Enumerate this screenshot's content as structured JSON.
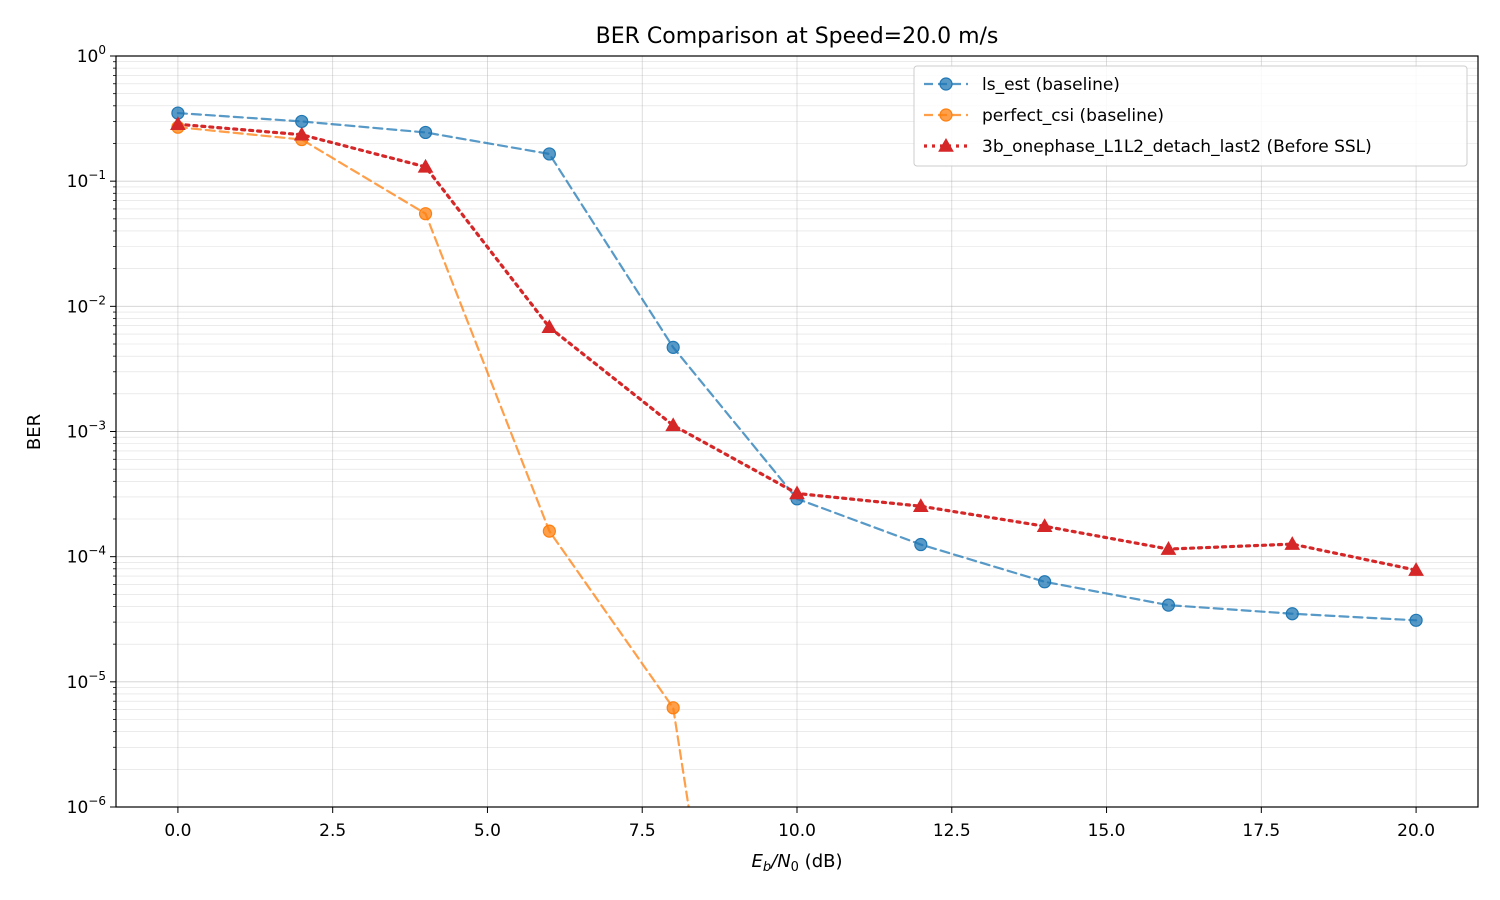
{
  "chart_data": {
    "type": "line",
    "title": "BER Comparison at Speed=20.0 m/s",
    "xlabel": "E_b/N_0 (dB)",
    "xlabel_parts": {
      "e": "E",
      "b": "b",
      "slash_n": "/N",
      "zero": "0",
      "unit": " (dB)"
    },
    "ylabel": "BER",
    "xlim": [
      -1.0,
      21.0
    ],
    "ylim": [
      1e-06,
      1
    ],
    "yscale": "log",
    "grid": true,
    "legend_location": "top-right",
    "x_ticks": [
      0.0,
      2.5,
      5.0,
      7.5,
      10.0,
      12.5,
      15.0,
      17.5,
      20.0
    ],
    "x_tick_labels": [
      "0.0",
      "2.5",
      "5.0",
      "7.5",
      "10.0",
      "12.5",
      "15.0",
      "17.5",
      "20.0"
    ],
    "y_ticks": [
      {
        "value": 1,
        "base": "10",
        "exp": "0"
      },
      {
        "value": 0.1,
        "base": "10",
        "exp": "−1"
      },
      {
        "value": 0.01,
        "base": "10",
        "exp": "−2"
      },
      {
        "value": 0.001,
        "base": "10",
        "exp": "−3"
      },
      {
        "value": 0.0001,
        "base": "10",
        "exp": "−4"
      },
      {
        "value": 1e-05,
        "base": "10",
        "exp": "−5"
      },
      {
        "value": 1e-06,
        "base": "10",
        "exp": "−6"
      }
    ],
    "series": [
      {
        "name": "ls_est (baseline)",
        "color": "#1f77b4",
        "line_style": "dashed",
        "marker": "circle",
        "x": [
          0,
          2,
          4,
          6,
          8,
          10,
          12,
          14,
          16,
          18,
          20
        ],
        "y": [
          0.35,
          0.3,
          0.245,
          0.165,
          0.0047,
          0.00029,
          0.000125,
          6.3e-05,
          4.1e-05,
          3.5e-05,
          3.1e-05
        ]
      },
      {
        "name": "perfect_csi (baseline)",
        "color": "#ff7f0e",
        "line_style": "dashed",
        "marker": "circle",
        "x": [
          0,
          2,
          4,
          6,
          8,
          8.25
        ],
        "y": [
          0.27,
          0.215,
          0.055,
          0.00016,
          6.2e-06,
          1e-06
        ],
        "marker_points": 5
      },
      {
        "name": "3b_onephase_L1L2_detach_last2 (Before SSL)",
        "color": "#d62728",
        "line_style": "dotted",
        "marker": "triangle",
        "x": [
          0,
          2,
          4,
          6,
          8,
          10,
          12,
          14,
          16,
          18,
          20
        ],
        "y": [
          0.285,
          0.235,
          0.13,
          0.0068,
          0.00112,
          0.00032,
          0.000253,
          0.000175,
          0.000115,
          0.000126,
          7.8e-05
        ]
      }
    ]
  }
}
